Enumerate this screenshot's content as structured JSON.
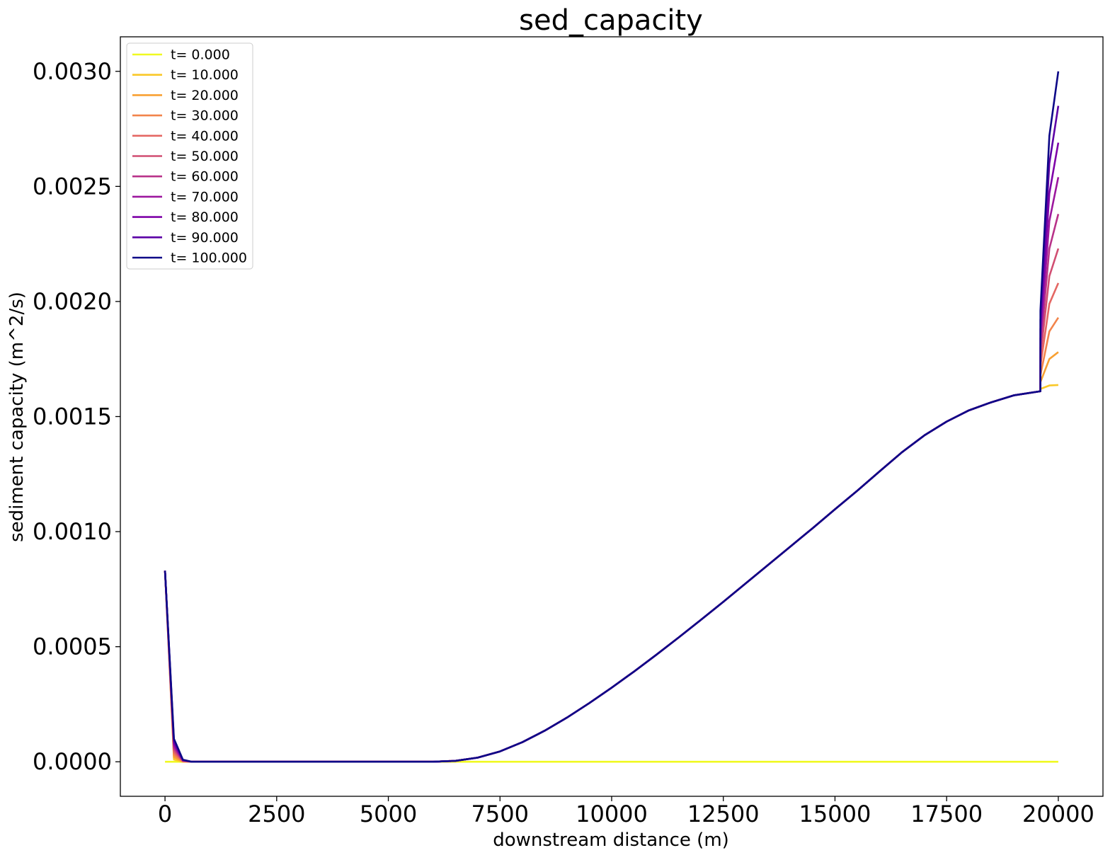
{
  "chart_data": {
    "type": "line",
    "title": "sed_capacity",
    "xlabel": "downstream distance (m)",
    "ylabel": "sediment capacity (m^2/s)",
    "xlim": [
      -1000,
      21000
    ],
    "ylim": [
      -0.00015,
      0.00315
    ],
    "xticks": [
      0,
      2500,
      5000,
      7500,
      10000,
      12500,
      15000,
      17500,
      20000
    ],
    "xtick_labels": [
      "0",
      "2500",
      "5000",
      "7500",
      "10000",
      "12500",
      "15000",
      "17500",
      "20000"
    ],
    "yticks": [
      0,
      0.0005,
      0.001,
      0.0015,
      0.002,
      0.0025,
      0.003
    ],
    "ytick_labels": [
      "0.0000",
      "0.0005",
      "0.0010",
      "0.0015",
      "0.0020",
      "0.0025",
      "0.0030"
    ],
    "grid": false,
    "legend_position": "top-left",
    "colormap": "plasma_r",
    "shared_curve": {
      "x": [
        6000,
        6500,
        7000,
        7500,
        8000,
        8500,
        9000,
        9500,
        10000,
        10500,
        11000,
        11500,
        12000,
        12500,
        13000,
        13500,
        14000,
        14500,
        15000,
        15500,
        16000,
        16500,
        17000,
        17500,
        18000,
        18500,
        19000,
        19600
      ],
      "y": [
        0,
        4e-06,
        1.8e-05,
        4.5e-05,
        8.5e-05,
        0.000135,
        0.000192,
        0.000255,
        0.000322,
        0.000392,
        0.000465,
        0.00054,
        0.000617,
        0.000695,
        0.000775,
        0.000855,
        0.000935,
        0.001015,
        0.001097,
        0.001178,
        0.001262,
        0.001345,
        0.001418,
        0.001478,
        0.001527,
        0.001562,
        0.001592,
        0.00161
      ]
    },
    "series": [
      {
        "name": "t= 0.000",
        "color": "#f0f921",
        "upstream": [
          0,
          0,
          0,
          0,
          0
        ],
        "downstream": null
      },
      {
        "name": "t= 10.000",
        "color": "#f9c828",
        "upstream": [
          0.00083,
          1e-05,
          0,
          0,
          0
        ],
        "downstream": [
          0.00161,
          0.00162,
          0.001635,
          0.001637
        ]
      },
      {
        "name": "t= 20.000",
        "color": "#f8a032",
        "upstream": [
          0.00083,
          2e-05,
          1e-06,
          0,
          0
        ],
        "downstream": [
          0.00161,
          0.00165,
          0.00175,
          0.00178
        ]
      },
      {
        "name": "t= 30.000",
        "color": "#f2844b",
        "upstream": [
          0.00083,
          3e-05,
          2e-06,
          0,
          0
        ],
        "downstream": [
          0.00161,
          0.00168,
          0.00187,
          0.00193
        ]
      },
      {
        "name": "t= 40.000",
        "color": "#e46763",
        "upstream": [
          0.00083,
          4e-05,
          3e-06,
          0,
          0
        ],
        "downstream": [
          0.00161,
          0.00172,
          0.00199,
          0.00208
        ]
      },
      {
        "name": "t= 50.000",
        "color": "#d14e72",
        "upstream": [
          0.00083,
          5e-05,
          4e-06,
          0,
          0
        ],
        "downstream": [
          0.00161,
          0.00176,
          0.00211,
          0.00223
        ]
      },
      {
        "name": "t= 60.000",
        "color": "#b83289",
        "upstream": [
          0.00083,
          6e-05,
          5e-06,
          0,
          0
        ],
        "downstream": [
          0.00161,
          0.0018,
          0.00223,
          0.00238
        ]
      },
      {
        "name": "t= 70.000",
        "color": "#9c179e",
        "upstream": [
          0.00083,
          7e-05,
          6e-06,
          0,
          0
        ],
        "downstream": [
          0.00161,
          0.00184,
          0.00235,
          0.00254
        ]
      },
      {
        "name": "t= 80.000",
        "color": "#7e03a8",
        "upstream": [
          0.00083,
          8e-05,
          7e-06,
          0,
          0
        ],
        "downstream": [
          0.00161,
          0.00188,
          0.00247,
          0.00269
        ]
      },
      {
        "name": "t= 90.000",
        "color": "#5c01a6",
        "upstream": [
          0.00083,
          9e-05,
          8e-06,
          0,
          0
        ],
        "downstream": [
          0.00161,
          0.00192,
          0.0026,
          0.00285
        ]
      },
      {
        "name": "t= 100.000",
        "color": "#0d0887",
        "upstream": [
          0.00083,
          0.0001,
          9e-06,
          0,
          0
        ],
        "downstream": [
          0.00161,
          0.00196,
          0.00272,
          0.003
        ]
      }
    ],
    "upstream_x": [
      0,
      200,
      400,
      600,
      1000
    ],
    "downstream_x": [
      19600,
      19600,
      19800,
      20000
    ]
  }
}
